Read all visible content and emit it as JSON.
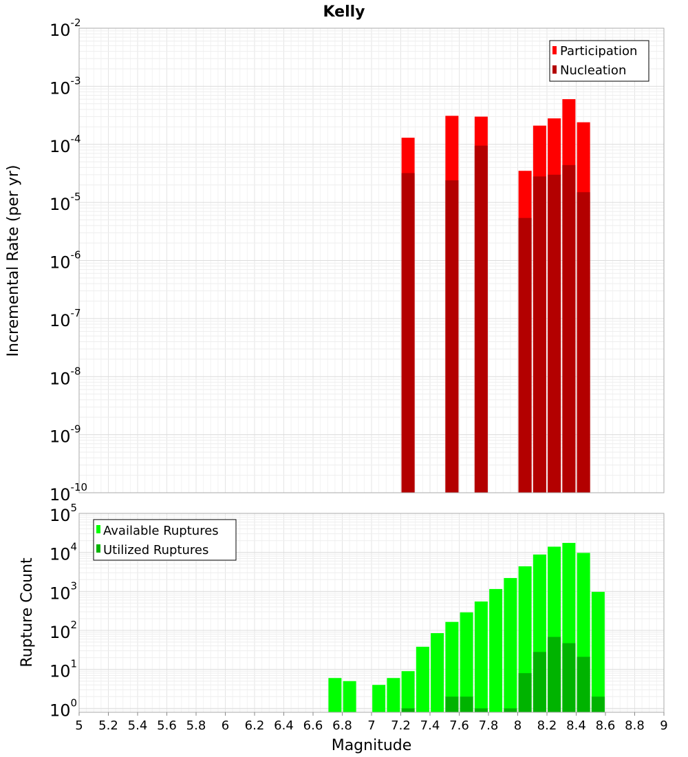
{
  "chart_data": [
    {
      "type": "bar",
      "title": "Kelly",
      "xlabel": "",
      "ylabel": "Incremental Rate (per yr)",
      "yscale": "log",
      "xlim": [
        5,
        9
      ],
      "ylim_exp": [
        -10,
        -2
      ],
      "y_tick_exponents": [
        "-10",
        "-9",
        "-8",
        "-7",
        "-6",
        "-5",
        "-4",
        "-3",
        "-2"
      ],
      "legend_position": "top-right",
      "series": [
        {
          "name": "Participation",
          "color": "#ff0000",
          "x": [
            7.25,
            7.55,
            7.75,
            8.05,
            8.15,
            8.25,
            8.35,
            8.45
          ],
          "values": [
            0.00013,
            0.00031,
            0.0003,
            3.5e-05,
            0.00021,
            0.00028,
            0.0006,
            0.00024
          ]
        },
        {
          "name": "Nucleation",
          "color": "#b30000",
          "x": [
            7.25,
            7.55,
            7.75,
            8.05,
            8.15,
            8.25,
            8.35,
            8.45
          ],
          "values": [
            3.2e-05,
            2.4e-05,
            9.5e-05,
            5.4e-06,
            2.8e-05,
            3e-05,
            4.4e-05,
            1.5e-05
          ]
        }
      ]
    },
    {
      "type": "bar",
      "title": "",
      "xlabel": "Magnitude",
      "ylabel": "Rupture Count",
      "yscale": "log",
      "xlim": [
        5,
        9
      ],
      "ylim_exp": [
        -0.1,
        5
      ],
      "y_tick_exponents": [
        "0",
        "1",
        "2",
        "3",
        "4",
        "5"
      ],
      "x_ticks": [
        "5",
        "5.2",
        "5.4",
        "5.6",
        "5.8",
        "6",
        "6.2",
        "6.4",
        "6.6",
        "6.8",
        "7",
        "7.2",
        "7.4",
        "7.6",
        "7.8",
        "8",
        "8.2",
        "8.4",
        "8.6",
        "8.8",
        "9"
      ],
      "legend_position": "top-left",
      "series": [
        {
          "name": "Available Ruptures",
          "color": "#00ff00",
          "x": [
            6.75,
            6.85,
            7.05,
            7.15,
            7.25,
            7.35,
            7.45,
            7.55,
            7.65,
            7.75,
            7.85,
            7.95,
            8.05,
            8.15,
            8.25,
            8.35,
            8.45,
            8.55
          ],
          "values": [
            6,
            5,
            4,
            6,
            9,
            38,
            85,
            165,
            290,
            550,
            1150,
            2200,
            4400,
            8800,
            14000,
            17500,
            9700,
            970
          ]
        },
        {
          "name": "Utilized Ruptures",
          "color": "#00b300",
          "x": [
            7.25,
            7.55,
            7.65,
            7.75,
            7.95,
            8.05,
            8.15,
            8.25,
            8.35,
            8.45,
            8.55
          ],
          "values": [
            1,
            2,
            2,
            1,
            1,
            8,
            28,
            68,
            47,
            21,
            2
          ]
        }
      ]
    }
  ]
}
